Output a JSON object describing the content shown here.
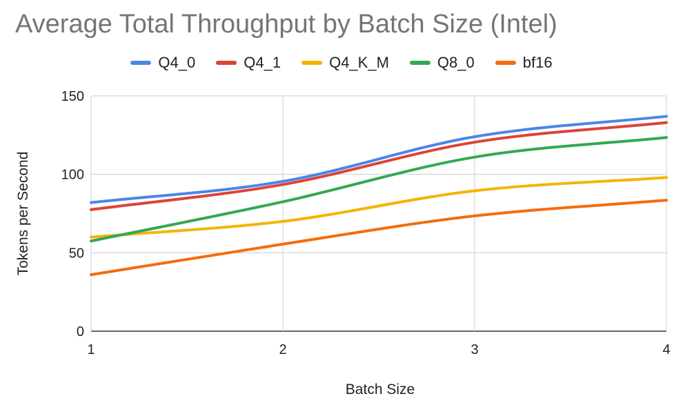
{
  "chart_data": {
    "type": "line",
    "title": "Average Total Throughput by Batch Size (Intel)",
    "xlabel": "Batch Size",
    "ylabel": "Tokens per Second",
    "x": [
      1,
      2,
      3,
      4
    ],
    "xlim": [
      1,
      4
    ],
    "ylim": [
      0,
      150
    ],
    "xticks": [
      "1",
      "2",
      "3",
      "4"
    ],
    "yticks": [
      "0",
      "50",
      "100",
      "150"
    ],
    "grid": true,
    "legend_position": "top",
    "series": [
      {
        "name": "Q4_0",
        "color": "#4a86e8",
        "values": [
          82,
          95.5,
          124,
          137
        ]
      },
      {
        "name": "Q4_1",
        "color": "#db4437",
        "values": [
          77.5,
          93.5,
          120.5,
          133
        ]
      },
      {
        "name": "Q4_K_M",
        "color": "#f4b400",
        "values": [
          60,
          70,
          89.5,
          98
        ]
      },
      {
        "name": "Q8_0",
        "color": "#34a853",
        "values": [
          57.5,
          82.5,
          111,
          123.5
        ]
      },
      {
        "name": "bf16",
        "color": "#f46d0a",
        "values": [
          36,
          55.5,
          73.5,
          83.5
        ]
      }
    ]
  }
}
